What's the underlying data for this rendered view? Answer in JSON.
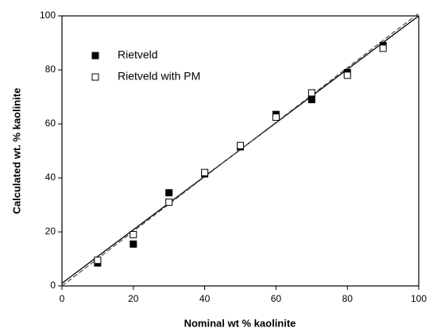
{
  "chart_data": {
    "type": "scatter",
    "xlabel": "Nominal wt % kaolinite",
    "ylabel": "Calculated wt. % kaolinite",
    "xlim": [
      0,
      100
    ],
    "ylim": [
      0,
      100
    ],
    "xticks": [
      0,
      20,
      40,
      60,
      80,
      100
    ],
    "yticks": [
      0,
      20,
      40,
      60,
      80,
      100
    ],
    "legend": "upper-left",
    "series": [
      {
        "name": "Rietveld",
        "color": "#000000",
        "marker": "filled-square",
        "x": [
          10,
          20,
          30,
          40,
          50,
          60,
          70,
          80,
          90
        ],
        "values": [
          8.5,
          15.5,
          34.5,
          41.5,
          51.5,
          63.5,
          69,
          79,
          89
        ]
      },
      {
        "name": "Rietveld with PM",
        "color": "#000000",
        "marker": "open-square",
        "x": [
          10,
          20,
          30,
          40,
          50,
          60,
          70,
          80,
          90
        ],
        "values": [
          9.5,
          19,
          31,
          42,
          52,
          62.5,
          71.5,
          78,
          88
        ]
      }
    ],
    "lines": [
      {
        "x": [
          0,
          100
        ],
        "values": [
          1,
          100
        ],
        "dash": false,
        "color": "#000000"
      },
      {
        "x": [
          0,
          100
        ],
        "values": [
          0,
          101
        ],
        "dash": true,
        "color": "#555555"
      }
    ]
  }
}
